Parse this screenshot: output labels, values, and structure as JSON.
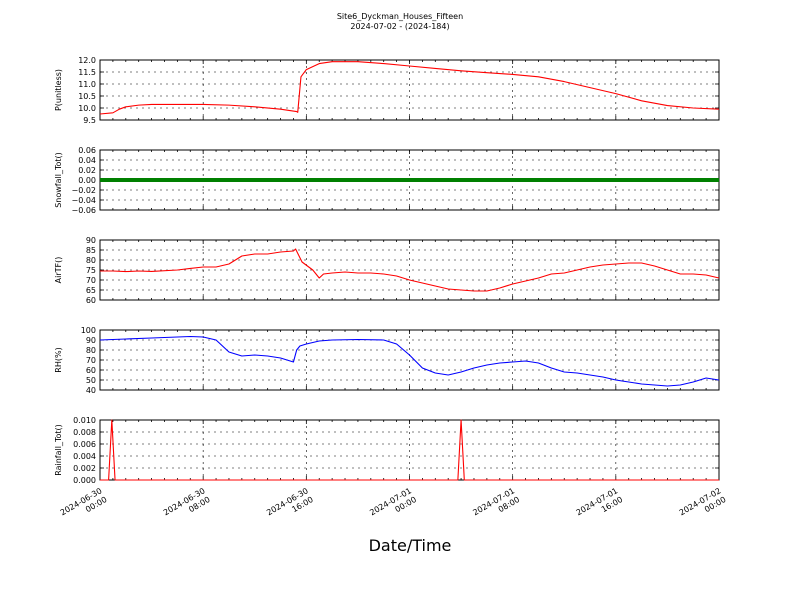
{
  "figure": {
    "title": "Site6_Dyckman_Houses_Fifteen",
    "subtitle": "2024-07-02 - (2024-184)",
    "xlabel": "Date/Time"
  },
  "chart_data": [
    {
      "type": "line",
      "ylabel": "P(unitless)",
      "ylim": [
        9.5,
        12.0
      ],
      "yticks": [
        "9.5",
        "10.0",
        "10.5",
        "11.0",
        "11.5",
        "12.0"
      ],
      "grid": true,
      "x_ticks": [
        "2024-06-30 00:00",
        "2024-06-30 08:00",
        "2024-06-30 16:00",
        "2024-07-01 00:00",
        "2024-07-01 08:00",
        "2024-07-01 16:00",
        "2024-07-02 00:00"
      ],
      "series": [
        {
          "color": "#ff0000",
          "x": [
            "2024-06-30 00:00",
            "2024-06-30 01:00",
            "2024-06-30 01:30",
            "2024-06-30 02:00",
            "2024-06-30 03:00",
            "2024-06-30 04:00",
            "2024-06-30 06:00",
            "2024-06-30 08:00",
            "2024-06-30 10:00",
            "2024-06-30 12:00",
            "2024-06-30 14:00",
            "2024-06-30 15:15",
            "2024-06-30 15:20",
            "2024-06-30 15:35",
            "2024-06-30 16:00",
            "2024-06-30 17:00",
            "2024-06-30 18:00",
            "2024-06-30 20:00",
            "2024-06-30 22:00",
            "2024-07-01 00:00",
            "2024-07-01 02:00",
            "2024-07-01 04:00",
            "2024-07-01 06:00",
            "2024-07-01 08:00",
            "2024-07-01 10:00",
            "2024-07-01 12:00",
            "2024-07-01 14:00",
            "2024-07-01 16:00",
            "2024-07-01 18:00",
            "2024-07-01 20:00",
            "2024-07-01 22:00",
            "2024-07-02 00:00"
          ],
          "y": [
            9.75,
            9.8,
            9.95,
            10.05,
            10.12,
            10.15,
            10.15,
            10.15,
            10.12,
            10.05,
            9.95,
            9.85,
            9.82,
            11.3,
            11.6,
            11.85,
            11.93,
            11.93,
            11.85,
            11.75,
            11.65,
            11.55,
            11.47,
            11.4,
            11.3,
            11.1,
            10.85,
            10.6,
            10.3,
            10.1,
            10.0,
            9.95
          ]
        }
      ]
    },
    {
      "type": "scatter",
      "ylabel": "Snowfall_Tot()",
      "ylim": [
        -0.06,
        0.06
      ],
      "yticks": [
        "−0.06",
        "−0.04",
        "−0.02",
        "0.00",
        "0.02",
        "0.04",
        "0.06"
      ],
      "grid": true,
      "series": [
        {
          "color": "#008000",
          "x_range": [
            "2024-06-30 00:00",
            "2024-07-02 00:00"
          ],
          "constant_y": 0.0
        }
      ]
    },
    {
      "type": "line",
      "ylabel": "AirTF()",
      "ylim": [
        60,
        90
      ],
      "yticks": [
        "60",
        "65",
        "70",
        "75",
        "80",
        "85",
        "90"
      ],
      "grid": true,
      "series": [
        {
          "color": "#ff0000",
          "x": [
            "2024-06-30 00:00",
            "2024-06-30 01:00",
            "2024-06-30 02:00",
            "2024-06-30 03:00",
            "2024-06-30 04:00",
            "2024-06-30 06:00",
            "2024-06-30 07:00",
            "2024-06-30 08:00",
            "2024-06-30 09:00",
            "2024-06-30 10:00",
            "2024-06-30 11:00",
            "2024-06-30 12:00",
            "2024-06-30 13:00",
            "2024-06-30 14:00",
            "2024-06-30 15:00",
            "2024-06-30 15:10",
            "2024-06-30 15:40",
            "2024-06-30 16:30",
            "2024-06-30 17:00",
            "2024-06-30 17:20",
            "2024-06-30 18:00",
            "2024-06-30 19:00",
            "2024-06-30 20:00",
            "2024-06-30 21:00",
            "2024-06-30 22:00",
            "2024-06-30 23:00",
            "2024-07-01 00:00",
            "2024-07-01 01:00",
            "2024-07-01 02:00",
            "2024-07-01 03:00",
            "2024-07-01 04:00",
            "2024-07-01 05:00",
            "2024-07-01 06:00",
            "2024-07-01 07:00",
            "2024-07-01 08:00",
            "2024-07-01 09:00",
            "2024-07-01 10:00",
            "2024-07-01 11:00",
            "2024-07-01 12:00",
            "2024-07-01 13:00",
            "2024-07-01 14:00",
            "2024-07-01 15:00",
            "2024-07-01 16:00",
            "2024-07-01 17:00",
            "2024-07-01 18:00",
            "2024-07-01 19:00",
            "2024-07-01 20:00",
            "2024-07-01 21:00",
            "2024-07-01 22:00",
            "2024-07-01 23:00",
            "2024-07-02 00:00"
          ],
          "y": [
            74.5,
            74.5,
            74.2,
            74.5,
            74.3,
            75,
            75.8,
            76.5,
            76.5,
            78,
            82,
            83,
            83,
            84,
            84.5,
            85.5,
            79,
            75,
            71,
            73,
            73.5,
            74,
            73.5,
            73.5,
            73,
            72,
            70,
            68.5,
            67,
            65.5,
            65,
            64.5,
            64.5,
            66,
            68,
            69.5,
            71,
            73,
            73.5,
            75,
            76.5,
            77.5,
            78,
            78.5,
            78.5,
            77,
            75,
            73,
            73,
            72.5,
            71
          ]
        }
      ]
    },
    {
      "type": "line",
      "ylabel": "RH(%)",
      "ylim": [
        40,
        100
      ],
      "yticks": [
        "40",
        "50",
        "60",
        "70",
        "80",
        "90",
        "100"
      ],
      "grid": true,
      "series": [
        {
          "color": "#0000ff",
          "x": [
            "2024-06-30 00:00",
            "2024-06-30 02:00",
            "2024-06-30 04:00",
            "2024-06-30 06:00",
            "2024-06-30 07:00",
            "2024-06-30 08:00",
            "2024-06-30 09:00",
            "2024-06-30 10:00",
            "2024-06-30 11:00",
            "2024-06-30 12:00",
            "2024-06-30 13:00",
            "2024-06-30 14:00",
            "2024-06-30 14:30",
            "2024-06-30 15:00",
            "2024-06-30 15:15",
            "2024-06-30 15:30",
            "2024-06-30 16:00",
            "2024-06-30 17:00",
            "2024-06-30 18:00",
            "2024-06-30 20:00",
            "2024-06-30 22:00",
            "2024-06-30 23:00",
            "2024-07-01 00:00",
            "2024-07-01 01:00",
            "2024-07-01 02:00",
            "2024-07-01 03:00",
            "2024-07-01 04:00",
            "2024-07-01 05:00",
            "2024-07-01 06:00",
            "2024-07-01 07:00",
            "2024-07-01 08:00",
            "2024-07-01 09:00",
            "2024-07-01 10:00",
            "2024-07-01 11:00",
            "2024-07-01 12:00",
            "2024-07-01 13:00",
            "2024-07-01 14:00",
            "2024-07-01 15:00",
            "2024-07-01 16:00",
            "2024-07-01 17:00",
            "2024-07-01 18:00",
            "2024-07-01 19:00",
            "2024-07-01 20:00",
            "2024-07-01 21:00",
            "2024-07-01 22:00",
            "2024-07-01 23:00",
            "2024-07-02 00:00"
          ],
          "y": [
            90,
            91,
            92,
            93,
            93.5,
            93,
            90,
            78,
            74,
            75,
            74,
            72,
            70,
            68,
            80,
            84,
            86,
            89,
            90,
            90.5,
            90,
            86,
            75,
            62,
            57,
            55,
            58,
            62,
            65,
            67,
            68,
            69,
            67,
            62,
            58,
            57,
            55,
            53,
            50,
            48,
            46,
            45,
            44,
            45,
            48,
            52,
            50
          ]
        }
      ]
    },
    {
      "type": "line",
      "ylabel": "Rainfall_Tot()",
      "ylim": [
        0.0,
        0.01
      ],
      "yticks": [
        "0.000",
        "0.002",
        "0.004",
        "0.006",
        "0.008",
        "0.010"
      ],
      "grid": true,
      "series": [
        {
          "color": "#ff0000",
          "x": [
            "2024-06-30 00:00",
            "2024-06-30 00:40",
            "2024-06-30 00:55",
            "2024-06-30 01:10",
            "2024-07-01 03:45",
            "2024-07-01 04:00",
            "2024-07-01 04:15",
            "2024-07-02 00:00"
          ],
          "y": [
            0,
            0,
            0.01,
            0,
            0,
            0.01,
            0,
            0
          ]
        }
      ]
    }
  ]
}
